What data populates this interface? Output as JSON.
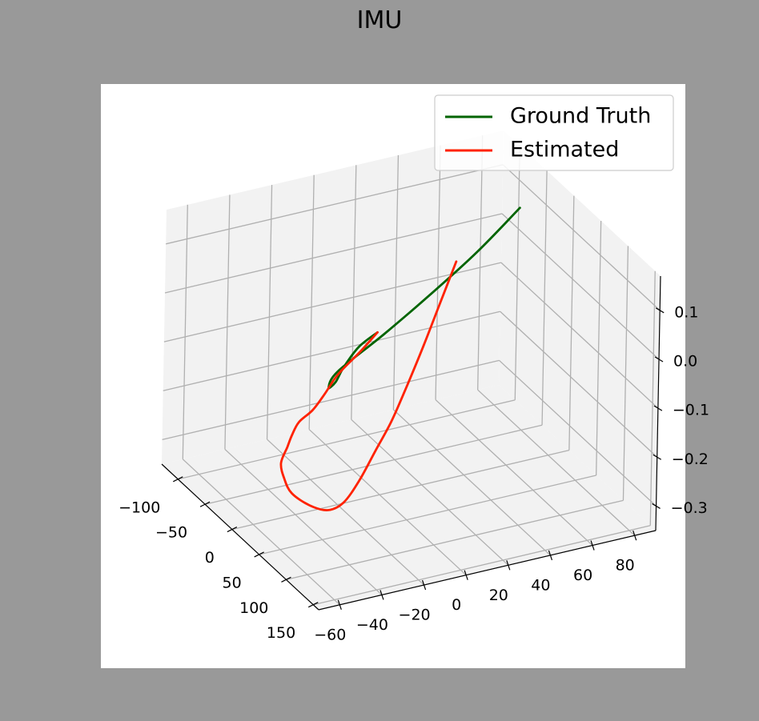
{
  "title": "IMU",
  "colors": {
    "figure_background": "#999999",
    "axes_background": "#ffffff",
    "pane": "#f2f2f2",
    "grid": "#b0b0b0",
    "ground_truth": "#006400",
    "estimated": "#ff2200"
  },
  "chart_data": {
    "type": "line",
    "projection": "3d",
    "title": "IMU",
    "legend": {
      "placement": "top-right",
      "entries": [
        "Ground Truth",
        "Estimated"
      ]
    },
    "grid": true,
    "xlim": [
      -130,
      160
    ],
    "ylim": [
      -70,
      90
    ],
    "zlim": [
      -0.35,
      0.17
    ],
    "x_ticks": [
      "−100",
      "−50",
      "0",
      "50",
      "100",
      "150"
    ],
    "y_ticks": [
      "−60",
      "−40",
      "−20",
      "0",
      "20",
      "40",
      "60",
      "80"
    ],
    "z_ticks": [
      "0.1",
      "0.0",
      "−0.1",
      "−0.2",
      "−0.3"
    ],
    "series": [
      {
        "name": "Ground Truth",
        "color": "#006400",
        "x": [
          105,
          125,
          140,
          145,
          140,
          110,
          60,
          10,
          -40,
          -90
        ],
        "y": [
          -30,
          -44,
          -55,
          -60,
          -62,
          -50,
          -15,
          20,
          55,
          88
        ],
        "z": [
          0.12,
          0.125,
          0.11,
          0.09,
          0.075,
          0.065,
          0.055,
          0.05,
          0.05,
          0.055
        ]
      },
      {
        "name": "Estimated",
        "color": "#ff2200",
        "x": [
          105,
          120,
          130,
          133,
          127,
          110,
          90,
          75,
          60,
          55,
          50,
          45,
          40,
          30,
          20,
          10,
          0,
          -10,
          -20,
          -30,
          -40
        ],
        "y": [
          -30,
          -42,
          -55,
          -62,
          -66,
          -68,
          -66,
          -64,
          -63,
          -60,
          -55,
          -45,
          -35,
          -25,
          -15,
          -5,
          5,
          15,
          25,
          35,
          45
        ],
        "z": [
          0.12,
          0.108,
          0.085,
          0.055,
          0.02,
          -0.02,
          -0.07,
          -0.11,
          -0.16,
          -0.2,
          -0.24,
          -0.28,
          -0.305,
          -0.31,
          -0.285,
          -0.245,
          -0.205,
          -0.15,
          -0.09,
          -0.025,
          0.04
        ]
      }
    ]
  }
}
